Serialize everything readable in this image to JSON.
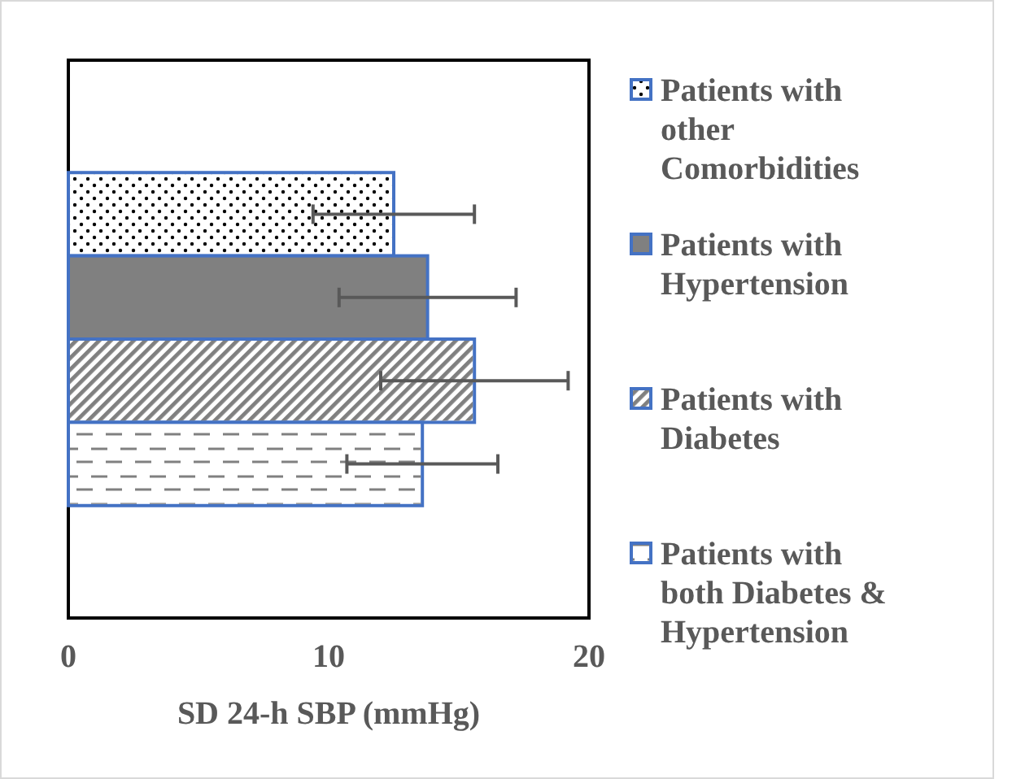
{
  "chart_data": {
    "type": "bar",
    "orientation": "horizontal",
    "categories": [
      null
    ],
    "xlabel": "SD 24-h SBP (mmHg)",
    "xlim": [
      0,
      20
    ],
    "xticks": [
      0,
      10,
      20
    ],
    "grid": false,
    "legend": "right",
    "series": [
      {
        "name": "Patients with other Comorbidities",
        "color": "#ffffff",
        "values": [
          12.5
        ],
        "errors": [
          3.1
        ]
      },
      {
        "name": "Patients with Hypertension",
        "color": "#808080",
        "values": [
          13.8
        ],
        "errors": [
          3.4
        ]
      },
      {
        "name": "Patients with Diabetes",
        "color": "#ffffff",
        "values": [
          15.6
        ],
        "errors": [
          3.6
        ]
      },
      {
        "name": "Patients with both Diabetes & Hypertension",
        "color": "#ffffff",
        "values": [
          13.6
        ],
        "errors": [
          2.9
        ]
      }
    ]
  }
}
